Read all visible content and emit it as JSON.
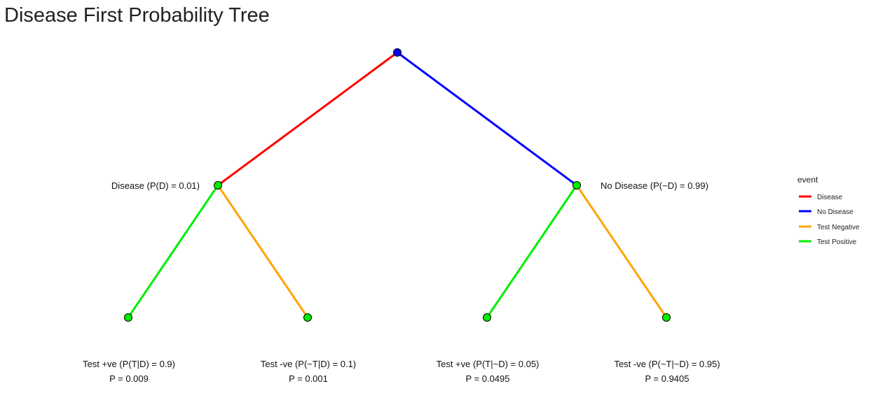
{
  "title": "Disease First Probability Tree",
  "colors": {
    "Disease": "#ff0000",
    "No Disease": "#0000ff",
    "Test Negative": "#ffa500",
    "Test Positive": "#00ee00",
    "node_root": "#0000ff",
    "node_child": "#00ee00"
  },
  "level1": {
    "disease_label": "Disease (P(D) = 0.01)",
    "no_disease_label": "No Disease (P(~D) = 0.99)"
  },
  "leaves": [
    {
      "label": "Test +ve (P(T|D) = 0.9)",
      "p": "P = 0.009",
      "event": "Test Positive"
    },
    {
      "label": "Test -ve (P(~T|D) = 0.1)",
      "p": "P = 0.001",
      "event": "Test Negative"
    },
    {
      "label": "Test +ve (P(T|~D) = 0.05)",
      "p": "P = 0.0495",
      "event": "Test Positive"
    },
    {
      "label": "Test -ve (P(~T|~D) = 0.95)",
      "p": "P = 0.9405",
      "event": "Test Negative"
    }
  ],
  "legend": {
    "title": "event",
    "items": [
      "Disease",
      "No Disease",
      "Test Negative",
      "Test Positive"
    ]
  }
}
